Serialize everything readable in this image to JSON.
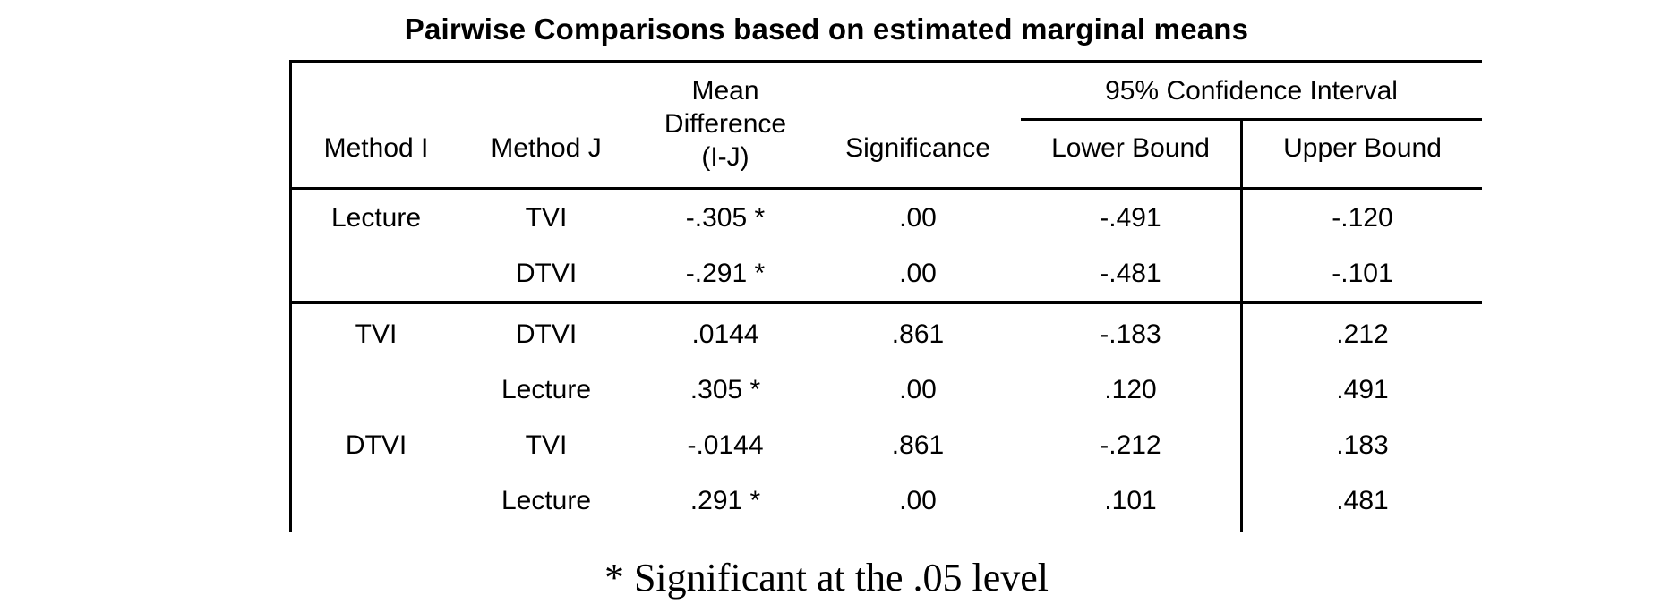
{
  "title": "Pairwise Comparisons based on estimated marginal means",
  "table": {
    "headers": {
      "method_i": "Method I",
      "method_j": "Method J",
      "mean_difference_line1": "Mean",
      "mean_difference_line2": "Difference",
      "mean_difference_line3": "(I-J)",
      "significance": "Significance",
      "confidence_interval": "95% Confidence Interval",
      "lower_bound": "Lower Bound",
      "upper_bound": "Upper Bound"
    },
    "rows": [
      {
        "method_i": "Lecture",
        "method_j": "TVI",
        "mean_difference": "-.305 *",
        "significance": ".00",
        "lower": "-.491",
        "upper": "-.120"
      },
      {
        "method_i": "",
        "method_j": "DTVI",
        "mean_difference": "-.291 *",
        "significance": ".00",
        "lower": "-.481",
        "upper": "-.101"
      },
      {
        "method_i": "TVI",
        "method_j": "DTVI",
        "mean_difference": ".0144",
        "significance": ".861",
        "lower": "-.183",
        "upper": ".212"
      },
      {
        "method_i": "",
        "method_j": "Lecture",
        "mean_difference": ".305 *",
        "significance": ".00",
        "lower": ".120",
        "upper": ".491"
      },
      {
        "method_i": "DTVI",
        "method_j": "TVI",
        "mean_difference": "-.0144",
        "significance": ".861",
        "lower": "-.212",
        "upper": ".183"
      },
      {
        "method_i": "",
        "method_j": "Lecture",
        "mean_difference": ".291 *",
        "significance": ".00",
        "lower": ".101",
        "upper": ".481"
      }
    ]
  },
  "footnote": "* Significant at the .05 level"
}
